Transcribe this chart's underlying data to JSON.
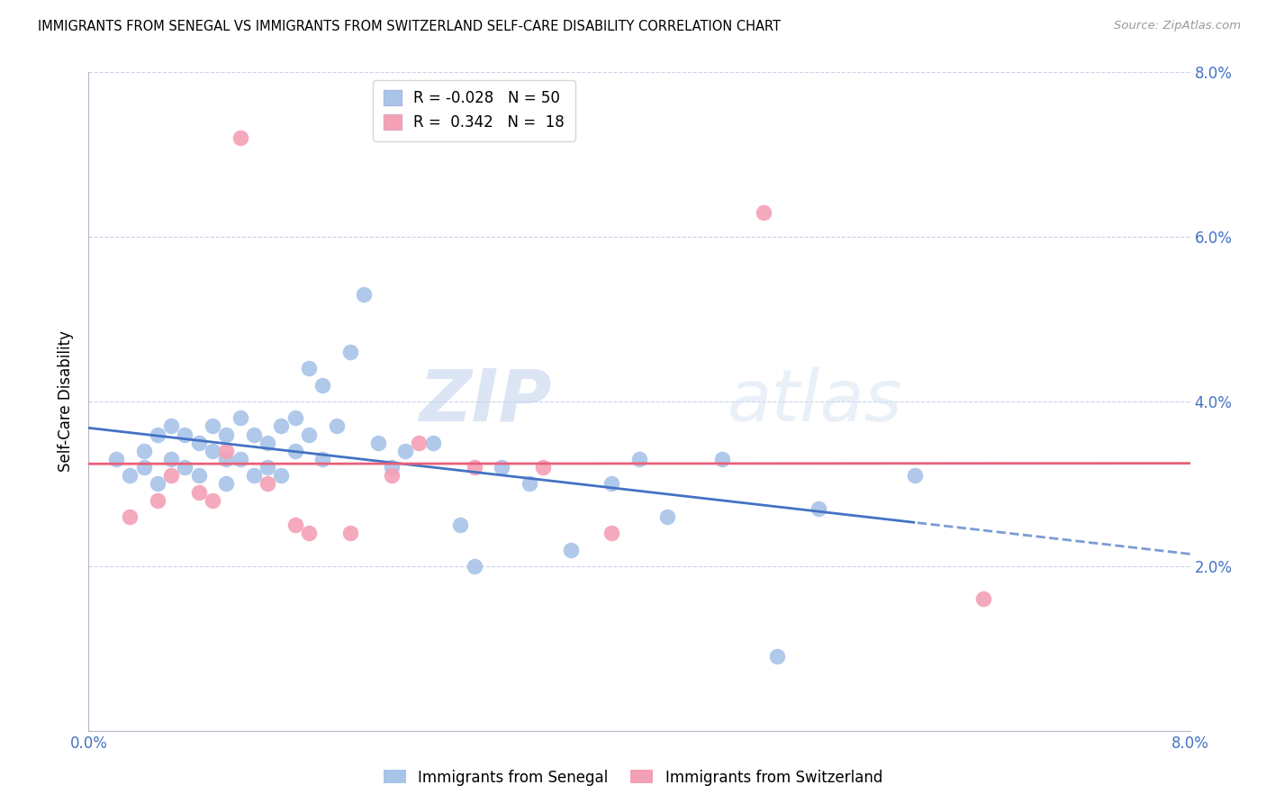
{
  "title": "IMMIGRANTS FROM SENEGAL VS IMMIGRANTS FROM SWITZERLAND SELF-CARE DISABILITY CORRELATION CHART",
  "source": "Source: ZipAtlas.com",
  "ylabel": "Self-Care Disability",
  "xmin": 0.0,
  "xmax": 0.08,
  "ymin": 0.0,
  "ymax": 0.08,
  "senegal_color": "#a8c4e8",
  "switzerland_color": "#f4a0b5",
  "senegal_line_color": "#4472c4",
  "switzerland_line_color": "#e8607a",
  "legend_r_senegal": "-0.028",
  "legend_n_senegal": "50",
  "legend_r_switzerland": "0.342",
  "legend_n_switzerland": "18",
  "watermark_zip": "ZIP",
  "watermark_atlas": "atlas",
  "senegal_x": [
    0.002,
    0.003,
    0.004,
    0.004,
    0.005,
    0.005,
    0.006,
    0.006,
    0.007,
    0.007,
    0.008,
    0.008,
    0.009,
    0.009,
    0.01,
    0.01,
    0.01,
    0.011,
    0.011,
    0.012,
    0.012,
    0.013,
    0.013,
    0.014,
    0.014,
    0.015,
    0.015,
    0.016,
    0.016,
    0.017,
    0.017,
    0.018,
    0.019,
    0.02,
    0.021,
    0.022,
    0.023,
    0.025,
    0.027,
    0.028,
    0.03,
    0.032,
    0.035,
    0.038,
    0.04,
    0.042,
    0.046,
    0.05,
    0.053,
    0.06
  ],
  "senegal_y": [
    0.033,
    0.031,
    0.034,
    0.032,
    0.036,
    0.03,
    0.037,
    0.033,
    0.036,
    0.032,
    0.035,
    0.031,
    0.037,
    0.034,
    0.036,
    0.033,
    0.03,
    0.038,
    0.033,
    0.036,
    0.031,
    0.035,
    0.032,
    0.037,
    0.031,
    0.038,
    0.034,
    0.044,
    0.036,
    0.042,
    0.033,
    0.037,
    0.046,
    0.053,
    0.035,
    0.032,
    0.034,
    0.035,
    0.025,
    0.02,
    0.032,
    0.03,
    0.022,
    0.03,
    0.033,
    0.026,
    0.033,
    0.009,
    0.027,
    0.031
  ],
  "switzerland_x": [
    0.003,
    0.005,
    0.006,
    0.008,
    0.009,
    0.01,
    0.011,
    0.013,
    0.015,
    0.016,
    0.019,
    0.022,
    0.024,
    0.028,
    0.033,
    0.038,
    0.049,
    0.065
  ],
  "switzerland_y": [
    0.026,
    0.028,
    0.031,
    0.029,
    0.028,
    0.034,
    0.072,
    0.03,
    0.025,
    0.024,
    0.024,
    0.031,
    0.035,
    0.032,
    0.032,
    0.024,
    0.063,
    0.016
  ]
}
